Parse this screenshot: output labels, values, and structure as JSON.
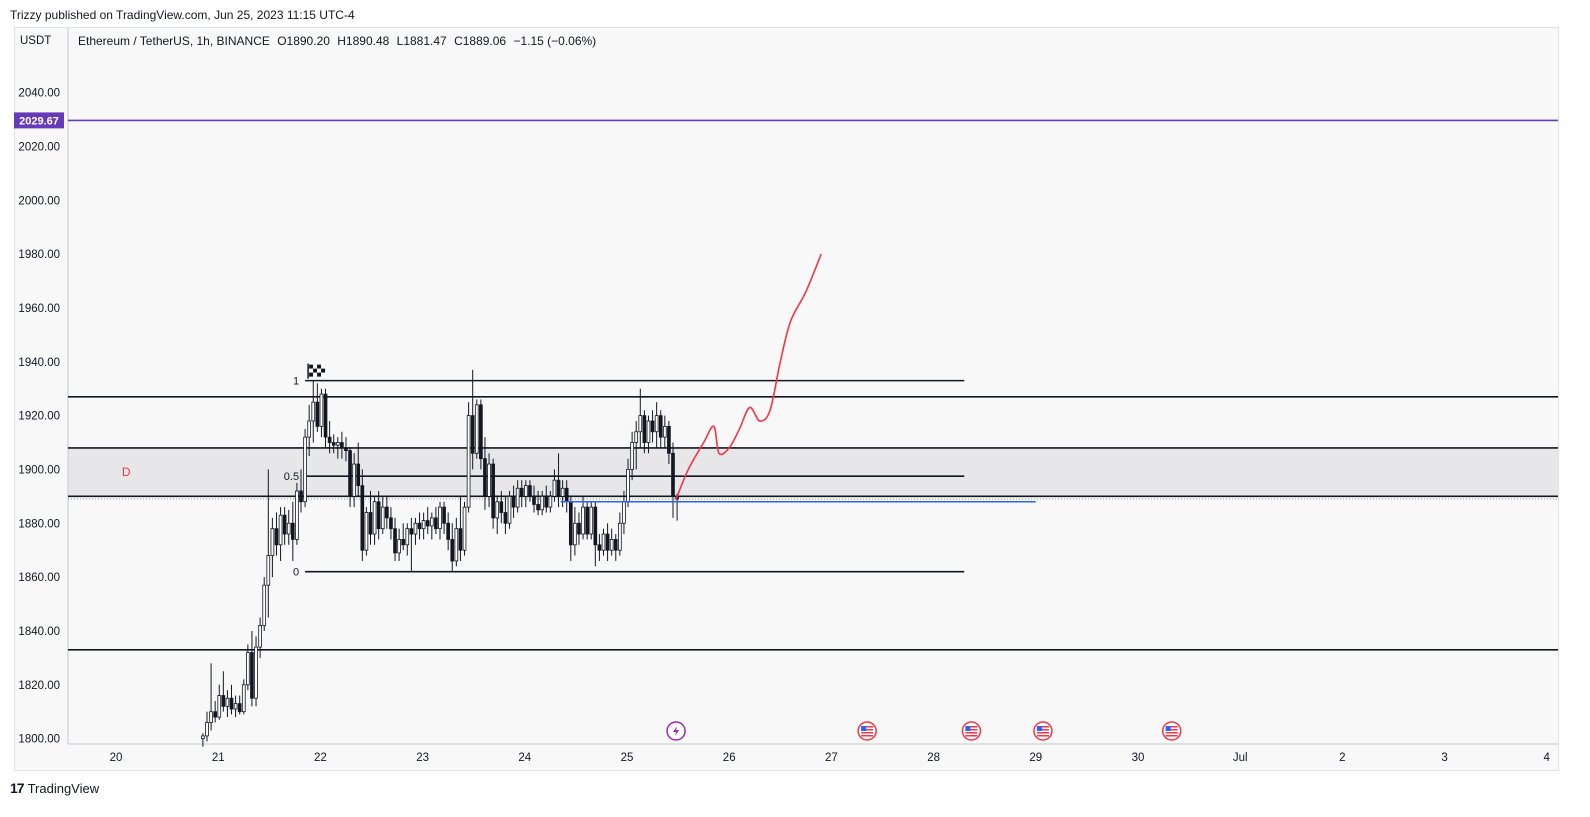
{
  "header": {
    "published": "Trizzy published on TradingView.com, Jun 25, 2023 11:15 UTC-4"
  },
  "legend": {
    "symbol": "Ethereum / TetherUS, 1h, BINANCE",
    "open": "O1890.20",
    "high": "H1890.48",
    "low": "L1881.47",
    "close": "C1889.06",
    "change": "−1.15 (−0.06%)"
  },
  "currency_label": "USDT",
  "footer": {
    "brand": "TradingView"
  },
  "colors": {
    "up": "#ffffff",
    "down": "#131722",
    "level_line": "#131722",
    "marker_line": "#673ab7",
    "forecast": "#f23645",
    "blue_line": "#2962ff",
    "zone_fill": "#e7e7ea"
  },
  "icons": {
    "flag": "checkered-flag-icon",
    "events": [
      "lightning-icon",
      "us-flag-icon",
      "us-flag-icon",
      "us-flag-icon",
      "us-flag-icon"
    ]
  },
  "chart_data": {
    "type": "candlestick",
    "title": "",
    "ylim": [
      1798,
      2064
    ],
    "y_ticks": [
      1800,
      1820,
      1840,
      1860,
      1880,
      1900,
      1920,
      1940,
      1960,
      1980,
      2000,
      2020,
      2040
    ],
    "y_tick_labels": [
      "1800.00",
      "1820.00",
      "1840.00",
      "1860.00",
      "1880.00",
      "1900.00",
      "1920.00",
      "1940.00",
      "1960.00",
      "1980.00",
      "2000.00",
      "2020.00",
      "2040.00"
    ],
    "x_ticks": [
      "20",
      "21",
      "22",
      "23",
      "24",
      "25",
      "26",
      "27",
      "28",
      "29",
      "30",
      "Jul",
      "2",
      "3",
      "4"
    ],
    "x_tick_days": [
      20,
      21,
      22,
      23,
      24,
      25,
      26,
      27,
      28,
      29,
      30,
      31,
      32,
      33,
      34
    ],
    "xlim": [
      19.53,
      34.11
    ],
    "price_marker": {
      "value": 2029.67,
      "label": "2029.67"
    },
    "horizontal_levels": [
      1927,
      1908,
      1890,
      1833
    ],
    "zone": [
      1890,
      1908
    ],
    "zone_label": "D",
    "fib": {
      "x_range": [
        21.85,
        28.3
      ],
      "levels": [
        {
          "label": "1",
          "value": 1933
        },
        {
          "label": "0.5",
          "value": 1897.5
        },
        {
          "label": "0",
          "value": 1862
        }
      ]
    },
    "blue_line": {
      "value": 1888,
      "x_range": [
        24.35,
        29.0
      ]
    },
    "forecast_path": [
      [
        25.48,
        1889
      ],
      [
        25.6,
        1900
      ],
      [
        25.75,
        1910
      ],
      [
        25.85,
        1916
      ],
      [
        25.9,
        1906
      ],
      [
        26.0,
        1908
      ],
      [
        26.1,
        1915
      ],
      [
        26.2,
        1923
      ],
      [
        26.3,
        1918
      ],
      [
        26.4,
        1922
      ],
      [
        26.5,
        1940
      ],
      [
        26.6,
        1955
      ],
      [
        26.75,
        1966
      ],
      [
        26.9,
        1980
      ]
    ],
    "event_days": [
      25.48,
      27.35,
      28.37,
      29.07,
      30.33
    ],
    "candles": [
      {
        "d": 20.85,
        "o": 1800,
        "h": 1802,
        "l": 1797,
        "c": 1801
      },
      {
        "d": 20.89,
        "o": 1801,
        "h": 1810,
        "l": 1799,
        "c": 1806
      },
      {
        "d": 20.93,
        "o": 1806,
        "h": 1828,
        "l": 1803,
        "c": 1810
      },
      {
        "d": 20.97,
        "o": 1810,
        "h": 1814,
        "l": 1806,
        "c": 1808
      },
      {
        "d": 21.01,
        "o": 1808,
        "h": 1820,
        "l": 1807,
        "c": 1816
      },
      {
        "d": 21.05,
        "o": 1816,
        "h": 1825,
        "l": 1810,
        "c": 1812
      },
      {
        "d": 21.09,
        "o": 1812,
        "h": 1818,
        "l": 1808,
        "c": 1815
      },
      {
        "d": 21.13,
        "o": 1815,
        "h": 1820,
        "l": 1809,
        "c": 1811
      },
      {
        "d": 21.17,
        "o": 1811,
        "h": 1816,
        "l": 1808,
        "c": 1813
      },
      {
        "d": 21.21,
        "o": 1813,
        "h": 1816,
        "l": 1809,
        "c": 1810
      },
      {
        "d": 21.25,
        "o": 1810,
        "h": 1822,
        "l": 1809,
        "c": 1820
      },
      {
        "d": 21.29,
        "o": 1820,
        "h": 1835,
        "l": 1818,
        "c": 1832
      },
      {
        "d": 21.33,
        "o": 1832,
        "h": 1840,
        "l": 1812,
        "c": 1815
      },
      {
        "d": 21.37,
        "o": 1815,
        "h": 1838,
        "l": 1812,
        "c": 1834
      },
      {
        "d": 21.41,
        "o": 1834,
        "h": 1845,
        "l": 1830,
        "c": 1842
      },
      {
        "d": 21.45,
        "o": 1842,
        "h": 1860,
        "l": 1840,
        "c": 1857
      },
      {
        "d": 21.49,
        "o": 1857,
        "h": 1900,
        "l": 1845,
        "c": 1868
      },
      {
        "d": 21.53,
        "o": 1868,
        "h": 1882,
        "l": 1860,
        "c": 1878
      },
      {
        "d": 21.57,
        "o": 1878,
        "h": 1884,
        "l": 1868,
        "c": 1872
      },
      {
        "d": 21.61,
        "o": 1872,
        "h": 1886,
        "l": 1866,
        "c": 1883
      },
      {
        "d": 21.65,
        "o": 1883,
        "h": 1886,
        "l": 1872,
        "c": 1876
      },
      {
        "d": 21.69,
        "o": 1876,
        "h": 1885,
        "l": 1872,
        "c": 1880
      },
      {
        "d": 21.73,
        "o": 1880,
        "h": 1888,
        "l": 1866,
        "c": 1874
      },
      {
        "d": 21.77,
        "o": 1874,
        "h": 1895,
        "l": 1872,
        "c": 1892
      },
      {
        "d": 21.81,
        "o": 1892,
        "h": 1900,
        "l": 1884,
        "c": 1888
      },
      {
        "d": 21.85,
        "o": 1888,
        "h": 1915,
        "l": 1886,
        "c": 1912
      },
      {
        "d": 21.89,
        "o": 1912,
        "h": 1924,
        "l": 1905,
        "c": 1918
      },
      {
        "d": 21.93,
        "o": 1918,
        "h": 1933,
        "l": 1910,
        "c": 1925
      },
      {
        "d": 21.97,
        "o": 1925,
        "h": 1932,
        "l": 1914,
        "c": 1916
      },
      {
        "d": 22.01,
        "o": 1916,
        "h": 1930,
        "l": 1912,
        "c": 1928
      },
      {
        "d": 22.05,
        "o": 1928,
        "h": 1930,
        "l": 1908,
        "c": 1912
      },
      {
        "d": 22.09,
        "o": 1912,
        "h": 1918,
        "l": 1906,
        "c": 1910
      },
      {
        "d": 22.13,
        "o": 1910,
        "h": 1913,
        "l": 1906,
        "c": 1909
      },
      {
        "d": 22.17,
        "o": 1909,
        "h": 1912,
        "l": 1904,
        "c": 1910
      },
      {
        "d": 22.21,
        "o": 1910,
        "h": 1914,
        "l": 1904,
        "c": 1908
      },
      {
        "d": 22.25,
        "o": 1908,
        "h": 1912,
        "l": 1903,
        "c": 1907
      },
      {
        "d": 22.29,
        "o": 1907,
        "h": 1908,
        "l": 1886,
        "c": 1890
      },
      {
        "d": 22.33,
        "o": 1890,
        "h": 1906,
        "l": 1886,
        "c": 1902
      },
      {
        "d": 22.37,
        "o": 1902,
        "h": 1910,
        "l": 1890,
        "c": 1894
      },
      {
        "d": 22.41,
        "o": 1894,
        "h": 1900,
        "l": 1866,
        "c": 1870
      },
      {
        "d": 22.45,
        "o": 1870,
        "h": 1886,
        "l": 1868,
        "c": 1884
      },
      {
        "d": 22.49,
        "o": 1884,
        "h": 1892,
        "l": 1872,
        "c": 1876
      },
      {
        "d": 22.53,
        "o": 1876,
        "h": 1890,
        "l": 1872,
        "c": 1888
      },
      {
        "d": 22.57,
        "o": 1888,
        "h": 1892,
        "l": 1874,
        "c": 1878
      },
      {
        "d": 22.61,
        "o": 1878,
        "h": 1890,
        "l": 1876,
        "c": 1886
      },
      {
        "d": 22.65,
        "o": 1886,
        "h": 1890,
        "l": 1878,
        "c": 1882
      },
      {
        "d": 22.69,
        "o": 1882,
        "h": 1886,
        "l": 1874,
        "c": 1878
      },
      {
        "d": 22.73,
        "o": 1878,
        "h": 1882,
        "l": 1866,
        "c": 1869
      },
      {
        "d": 22.77,
        "o": 1869,
        "h": 1878,
        "l": 1866,
        "c": 1874
      },
      {
        "d": 22.81,
        "o": 1874,
        "h": 1880,
        "l": 1870,
        "c": 1872
      },
      {
        "d": 22.85,
        "o": 1872,
        "h": 1880,
        "l": 1868,
        "c": 1878
      },
      {
        "d": 22.89,
        "o": 1878,
        "h": 1882,
        "l": 1862,
        "c": 1876
      },
      {
        "d": 22.93,
        "o": 1876,
        "h": 1882,
        "l": 1872,
        "c": 1880
      },
      {
        "d": 22.97,
        "o": 1880,
        "h": 1884,
        "l": 1874,
        "c": 1878
      },
      {
        "d": 23.01,
        "o": 1878,
        "h": 1884,
        "l": 1874,
        "c": 1881
      },
      {
        "d": 23.05,
        "o": 1881,
        "h": 1886,
        "l": 1876,
        "c": 1879
      },
      {
        "d": 23.09,
        "o": 1879,
        "h": 1884,
        "l": 1874,
        "c": 1882
      },
      {
        "d": 23.13,
        "o": 1882,
        "h": 1886,
        "l": 1876,
        "c": 1878
      },
      {
        "d": 23.17,
        "o": 1878,
        "h": 1888,
        "l": 1874,
        "c": 1886
      },
      {
        "d": 23.21,
        "o": 1886,
        "h": 1888,
        "l": 1876,
        "c": 1880
      },
      {
        "d": 23.25,
        "o": 1880,
        "h": 1884,
        "l": 1870,
        "c": 1874
      },
      {
        "d": 23.29,
        "o": 1874,
        "h": 1880,
        "l": 1862,
        "c": 1866
      },
      {
        "d": 23.33,
        "o": 1866,
        "h": 1882,
        "l": 1864,
        "c": 1878
      },
      {
        "d": 23.37,
        "o": 1878,
        "h": 1890,
        "l": 1866,
        "c": 1870
      },
      {
        "d": 23.41,
        "o": 1870,
        "h": 1888,
        "l": 1868,
        "c": 1886
      },
      {
        "d": 23.45,
        "o": 1886,
        "h": 1925,
        "l": 1884,
        "c": 1920
      },
      {
        "d": 23.49,
        "o": 1920,
        "h": 1937,
        "l": 1900,
        "c": 1906
      },
      {
        "d": 23.53,
        "o": 1906,
        "h": 1926,
        "l": 1904,
        "c": 1924
      },
      {
        "d": 23.57,
        "o": 1924,
        "h": 1926,
        "l": 1900,
        "c": 1904
      },
      {
        "d": 23.61,
        "o": 1904,
        "h": 1912,
        "l": 1885,
        "c": 1890
      },
      {
        "d": 23.65,
        "o": 1890,
        "h": 1906,
        "l": 1886,
        "c": 1902
      },
      {
        "d": 23.69,
        "o": 1902,
        "h": 1904,
        "l": 1878,
        "c": 1882
      },
      {
        "d": 23.73,
        "o": 1882,
        "h": 1890,
        "l": 1876,
        "c": 1888
      },
      {
        "d": 23.77,
        "o": 1888,
        "h": 1892,
        "l": 1880,
        "c": 1884
      },
      {
        "d": 23.81,
        "o": 1884,
        "h": 1890,
        "l": 1876,
        "c": 1880
      },
      {
        "d": 23.85,
        "o": 1880,
        "h": 1892,
        "l": 1878,
        "c": 1890
      },
      {
        "d": 23.89,
        "o": 1890,
        "h": 1894,
        "l": 1882,
        "c": 1886
      },
      {
        "d": 23.93,
        "o": 1886,
        "h": 1896,
        "l": 1884,
        "c": 1893
      },
      {
        "d": 23.97,
        "o": 1893,
        "h": 1896,
        "l": 1886,
        "c": 1890
      },
      {
        "d": 24.01,
        "o": 1890,
        "h": 1896,
        "l": 1886,
        "c": 1894
      },
      {
        "d": 24.05,
        "o": 1894,
        "h": 1896,
        "l": 1888,
        "c": 1890
      },
      {
        "d": 24.09,
        "o": 1890,
        "h": 1894,
        "l": 1884,
        "c": 1887
      },
      {
        "d": 24.13,
        "o": 1887,
        "h": 1892,
        "l": 1883,
        "c": 1885
      },
      {
        "d": 24.17,
        "o": 1885,
        "h": 1892,
        "l": 1883,
        "c": 1890
      },
      {
        "d": 24.21,
        "o": 1890,
        "h": 1894,
        "l": 1884,
        "c": 1886
      },
      {
        "d": 24.25,
        "o": 1886,
        "h": 1892,
        "l": 1884,
        "c": 1890
      },
      {
        "d": 24.29,
        "o": 1890,
        "h": 1900,
        "l": 1888,
        "c": 1896
      },
      {
        "d": 24.33,
        "o": 1896,
        "h": 1906,
        "l": 1886,
        "c": 1890
      },
      {
        "d": 24.37,
        "o": 1890,
        "h": 1896,
        "l": 1886,
        "c": 1893
      },
      {
        "d": 24.41,
        "o": 1893,
        "h": 1896,
        "l": 1884,
        "c": 1888
      },
      {
        "d": 24.45,
        "o": 1888,
        "h": 1890,
        "l": 1866,
        "c": 1872
      },
      {
        "d": 24.49,
        "o": 1872,
        "h": 1886,
        "l": 1868,
        "c": 1880
      },
      {
        "d": 24.53,
        "o": 1880,
        "h": 1884,
        "l": 1872,
        "c": 1876
      },
      {
        "d": 24.57,
        "o": 1876,
        "h": 1890,
        "l": 1874,
        "c": 1886
      },
      {
        "d": 24.61,
        "o": 1886,
        "h": 1888,
        "l": 1874,
        "c": 1876
      },
      {
        "d": 24.65,
        "o": 1876,
        "h": 1888,
        "l": 1874,
        "c": 1886
      },
      {
        "d": 24.69,
        "o": 1886,
        "h": 1888,
        "l": 1864,
        "c": 1872
      },
      {
        "d": 24.73,
        "o": 1872,
        "h": 1876,
        "l": 1866,
        "c": 1870
      },
      {
        "d": 24.77,
        "o": 1870,
        "h": 1878,
        "l": 1868,
        "c": 1876
      },
      {
        "d": 24.81,
        "o": 1876,
        "h": 1880,
        "l": 1866,
        "c": 1870
      },
      {
        "d": 24.85,
        "o": 1870,
        "h": 1878,
        "l": 1868,
        "c": 1874
      },
      {
        "d": 24.89,
        "o": 1874,
        "h": 1876,
        "l": 1866,
        "c": 1870
      },
      {
        "d": 24.93,
        "o": 1870,
        "h": 1884,
        "l": 1868,
        "c": 1880
      },
      {
        "d": 24.97,
        "o": 1880,
        "h": 1892,
        "l": 1876,
        "c": 1888
      },
      {
        "d": 25.01,
        "o": 1888,
        "h": 1904,
        "l": 1886,
        "c": 1900
      },
      {
        "d": 25.05,
        "o": 1900,
        "h": 1914,
        "l": 1896,
        "c": 1910
      },
      {
        "d": 25.09,
        "o": 1910,
        "h": 1918,
        "l": 1900,
        "c": 1914
      },
      {
        "d": 25.13,
        "o": 1914,
        "h": 1930,
        "l": 1908,
        "c": 1920
      },
      {
        "d": 25.17,
        "o": 1920,
        "h": 1922,
        "l": 1906,
        "c": 1910
      },
      {
        "d": 25.21,
        "o": 1910,
        "h": 1920,
        "l": 1906,
        "c": 1918
      },
      {
        "d": 25.25,
        "o": 1918,
        "h": 1922,
        "l": 1910,
        "c": 1914
      },
      {
        "d": 25.29,
        "o": 1914,
        "h": 1925,
        "l": 1908,
        "c": 1920
      },
      {
        "d": 25.33,
        "o": 1920,
        "h": 1922,
        "l": 1908,
        "c": 1912
      },
      {
        "d": 25.37,
        "o": 1912,
        "h": 1920,
        "l": 1908,
        "c": 1916
      },
      {
        "d": 25.41,
        "o": 1916,
        "h": 1918,
        "l": 1902,
        "c": 1906
      },
      {
        "d": 25.45,
        "o": 1906,
        "h": 1910,
        "l": 1882,
        "c": 1890
      },
      {
        "d": 25.49,
        "o": 1890,
        "h": 1891,
        "l": 1881,
        "c": 1889
      }
    ]
  }
}
